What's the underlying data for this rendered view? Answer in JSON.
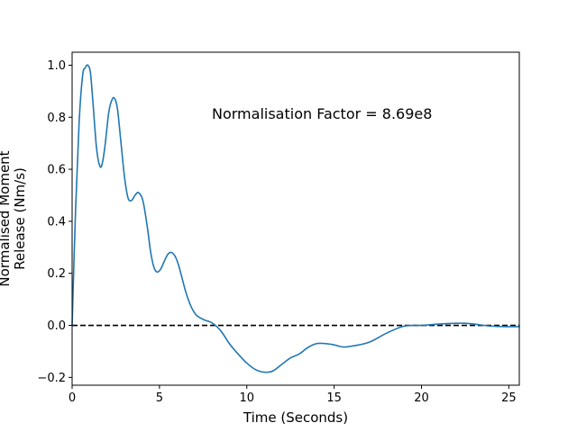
{
  "chart_data": {
    "type": "line",
    "title": "",
    "xlabel": "Time (Seconds)",
    "ylabel_lines": [
      "Normalised Moment",
      "Release (Nm/s)"
    ],
    "annotation": "Normalisation Factor = 8.69e8",
    "xlim": [
      0,
      25.6
    ],
    "ylim": [
      -0.23,
      1.05
    ],
    "xticks": [
      0,
      5,
      10,
      15,
      20,
      25
    ],
    "xtick_labels": [
      "0",
      "5",
      "10",
      "15",
      "20",
      "25"
    ],
    "yticks": [
      -0.2,
      0.0,
      0.2,
      0.4,
      0.6,
      0.8,
      1.0
    ],
    "ytick_labels": [
      "−0.2",
      "0.0",
      "0.2",
      "0.4",
      "0.6",
      "0.8",
      "1.0"
    ],
    "grid": false,
    "line_color": "#1f77b4",
    "reference_line": {
      "y": 0,
      "style": "dashed",
      "color": "#000000"
    },
    "series": [
      {
        "x": [
          0,
          0.2,
          0.4,
          0.6,
          0.75,
          0.9,
          1.05,
          1.2,
          1.4,
          1.6,
          1.75,
          1.9,
          2.1,
          2.3,
          2.45,
          2.6,
          2.8,
          3.0,
          3.2,
          3.4,
          3.6,
          3.8,
          4.05,
          4.3,
          4.5,
          4.7,
          4.9,
          5.1,
          5.3,
          5.5,
          5.7,
          5.9,
          6.1,
          6.3,
          6.5,
          6.7,
          6.9,
          7.1,
          7.3,
          7.6,
          8.0,
          8.5,
          9.0,
          9.5,
          10.0,
          10.5,
          11.0,
          11.5,
          12.0,
          12.5,
          13.0,
          13.5,
          14.0,
          14.5,
          15.0,
          15.5,
          16.0,
          17.0,
          18.0,
          19.0,
          20.0,
          21.0,
          22.0,
          22.5,
          23.0,
          24.0,
          25.0,
          25.6
        ],
        "y": [
          0.0,
          0.45,
          0.78,
          0.96,
          0.99,
          1.0,
          0.97,
          0.85,
          0.68,
          0.61,
          0.63,
          0.7,
          0.82,
          0.87,
          0.87,
          0.83,
          0.7,
          0.57,
          0.49,
          0.48,
          0.5,
          0.51,
          0.48,
          0.38,
          0.28,
          0.22,
          0.205,
          0.22,
          0.25,
          0.275,
          0.28,
          0.265,
          0.23,
          0.18,
          0.13,
          0.09,
          0.06,
          0.04,
          0.03,
          0.02,
          0.01,
          -0.02,
          -0.07,
          -0.11,
          -0.145,
          -0.17,
          -0.18,
          -0.175,
          -0.15,
          -0.125,
          -0.11,
          -0.085,
          -0.07,
          -0.07,
          -0.075,
          -0.083,
          -0.08,
          -0.065,
          -0.03,
          -0.003,
          0.0,
          0.005,
          0.008,
          0.008,
          0.005,
          -0.003,
          -0.005,
          -0.005
        ]
      }
    ]
  }
}
